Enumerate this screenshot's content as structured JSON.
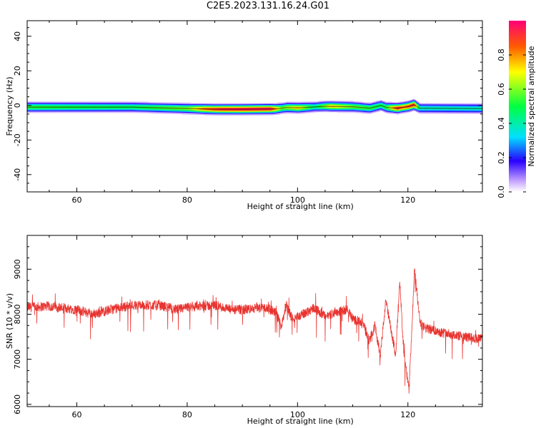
{
  "title": "C2E5.2023.131.16.24.G01",
  "chart_data": [
    {
      "type": "heatmap",
      "title": "",
      "xlabel": "Height of straight line (km)",
      "ylabel": "Frequency (Hz)",
      "xlim": [
        51,
        133.5
      ],
      "ylim": [
        -50,
        49
      ],
      "xticks": [
        60,
        80,
        100,
        120
      ],
      "yticks": [
        40,
        20,
        0,
        -20,
        -40
      ],
      "colorbar": {
        "label": "Normalized spectral amplitude",
        "range": [
          0.0,
          1.0
        ],
        "ticks": [
          "0.0",
          "0.2",
          "0.4",
          "0.6",
          "0.8"
        ],
        "colormap": "gist_rainbow_r"
      },
      "ridge_center_hz": [
        [
          51,
          -1
        ],
        [
          60,
          -1
        ],
        [
          70,
          -1
        ],
        [
          80,
          -1.8
        ],
        [
          85,
          -2.2
        ],
        [
          90,
          -2.2
        ],
        [
          96,
          -2.0
        ],
        [
          98,
          -1.2
        ],
        [
          100,
          -1.4
        ],
        [
          105,
          -0.5
        ],
        [
          110,
          -0.8
        ],
        [
          113,
          -1.6
        ],
        [
          115,
          0
        ],
        [
          116,
          -1.2
        ],
        [
          118,
          -1.6
        ],
        [
          120,
          -0.6
        ],
        [
          121,
          0.4
        ],
        [
          122,
          -1.6
        ],
        [
          133,
          -1.8
        ]
      ],
      "ridge_peak_amplitude": [
        [
          51,
          0.55
        ],
        [
          60,
          0.52
        ],
        [
          70,
          0.5
        ],
        [
          80,
          0.62
        ],
        [
          83,
          0.85
        ],
        [
          86,
          0.95
        ],
        [
          90,
          0.98
        ],
        [
          95,
          0.97
        ],
        [
          97,
          0.6
        ],
        [
          100,
          0.75
        ],
        [
          103,
          0.45
        ],
        [
          106,
          0.75
        ],
        [
          110,
          0.6
        ],
        [
          113,
          0.55
        ],
        [
          115,
          0.5
        ],
        [
          116,
          0.55
        ],
        [
          118,
          0.95
        ],
        [
          119,
          0.85
        ],
        [
          121,
          0.95
        ],
        [
          122,
          0.4
        ],
        [
          133,
          0.4
        ]
      ]
    },
    {
      "type": "line",
      "title": "",
      "xlabel": "Height of straight line (km)",
      "ylabel": "SNR (10 * v/v)",
      "xlim": [
        51,
        133.5
      ],
      "ylim": [
        5950,
        9750
      ],
      "xticks": [
        60,
        80,
        100,
        120
      ],
      "yticks": [
        6000,
        7000,
        8000,
        9000
      ],
      "series": [
        {
          "color": "#e8332f",
          "envelope": [
            [
              51,
              8150
            ],
            [
              55,
              8180
            ],
            [
              60,
              8100
            ],
            [
              63,
              8000
            ],
            [
              66,
              8100
            ],
            [
              70,
              8200
            ],
            [
              75,
              8200
            ],
            [
              78,
              8100
            ],
            [
              80,
              8150
            ],
            [
              85,
              8200
            ],
            [
              88,
              8100
            ],
            [
              90,
              8100
            ],
            [
              94,
              8150
            ],
            [
              96,
              8050
            ],
            [
              97,
              7750
            ],
            [
              98,
              8200
            ],
            [
              99,
              7900
            ],
            [
              101,
              8000
            ],
            [
              103,
              8150
            ],
            [
              105,
              7950
            ],
            [
              107,
              8050
            ],
            [
              109,
              8100
            ],
            [
              110,
              7900
            ],
            [
              111,
              7850
            ],
            [
              112,
              7750
            ],
            [
              113,
              7400
            ],
            [
              114,
              7750
            ],
            [
              115,
              7100
            ],
            [
              116,
              8300
            ],
            [
              117,
              7600
            ],
            [
              117.8,
              7100
            ],
            [
              118.5,
              8800
            ],
            [
              119.2,
              7200
            ],
            [
              120.2,
              6300
            ],
            [
              121.2,
              9000
            ],
            [
              122.2,
              7800
            ],
            [
              123,
              7700
            ],
            [
              126,
              7600
            ],
            [
              130,
              7500
            ],
            [
              133.5,
              7450
            ]
          ],
          "noise_amplitude": 110
        }
      ]
    }
  ]
}
